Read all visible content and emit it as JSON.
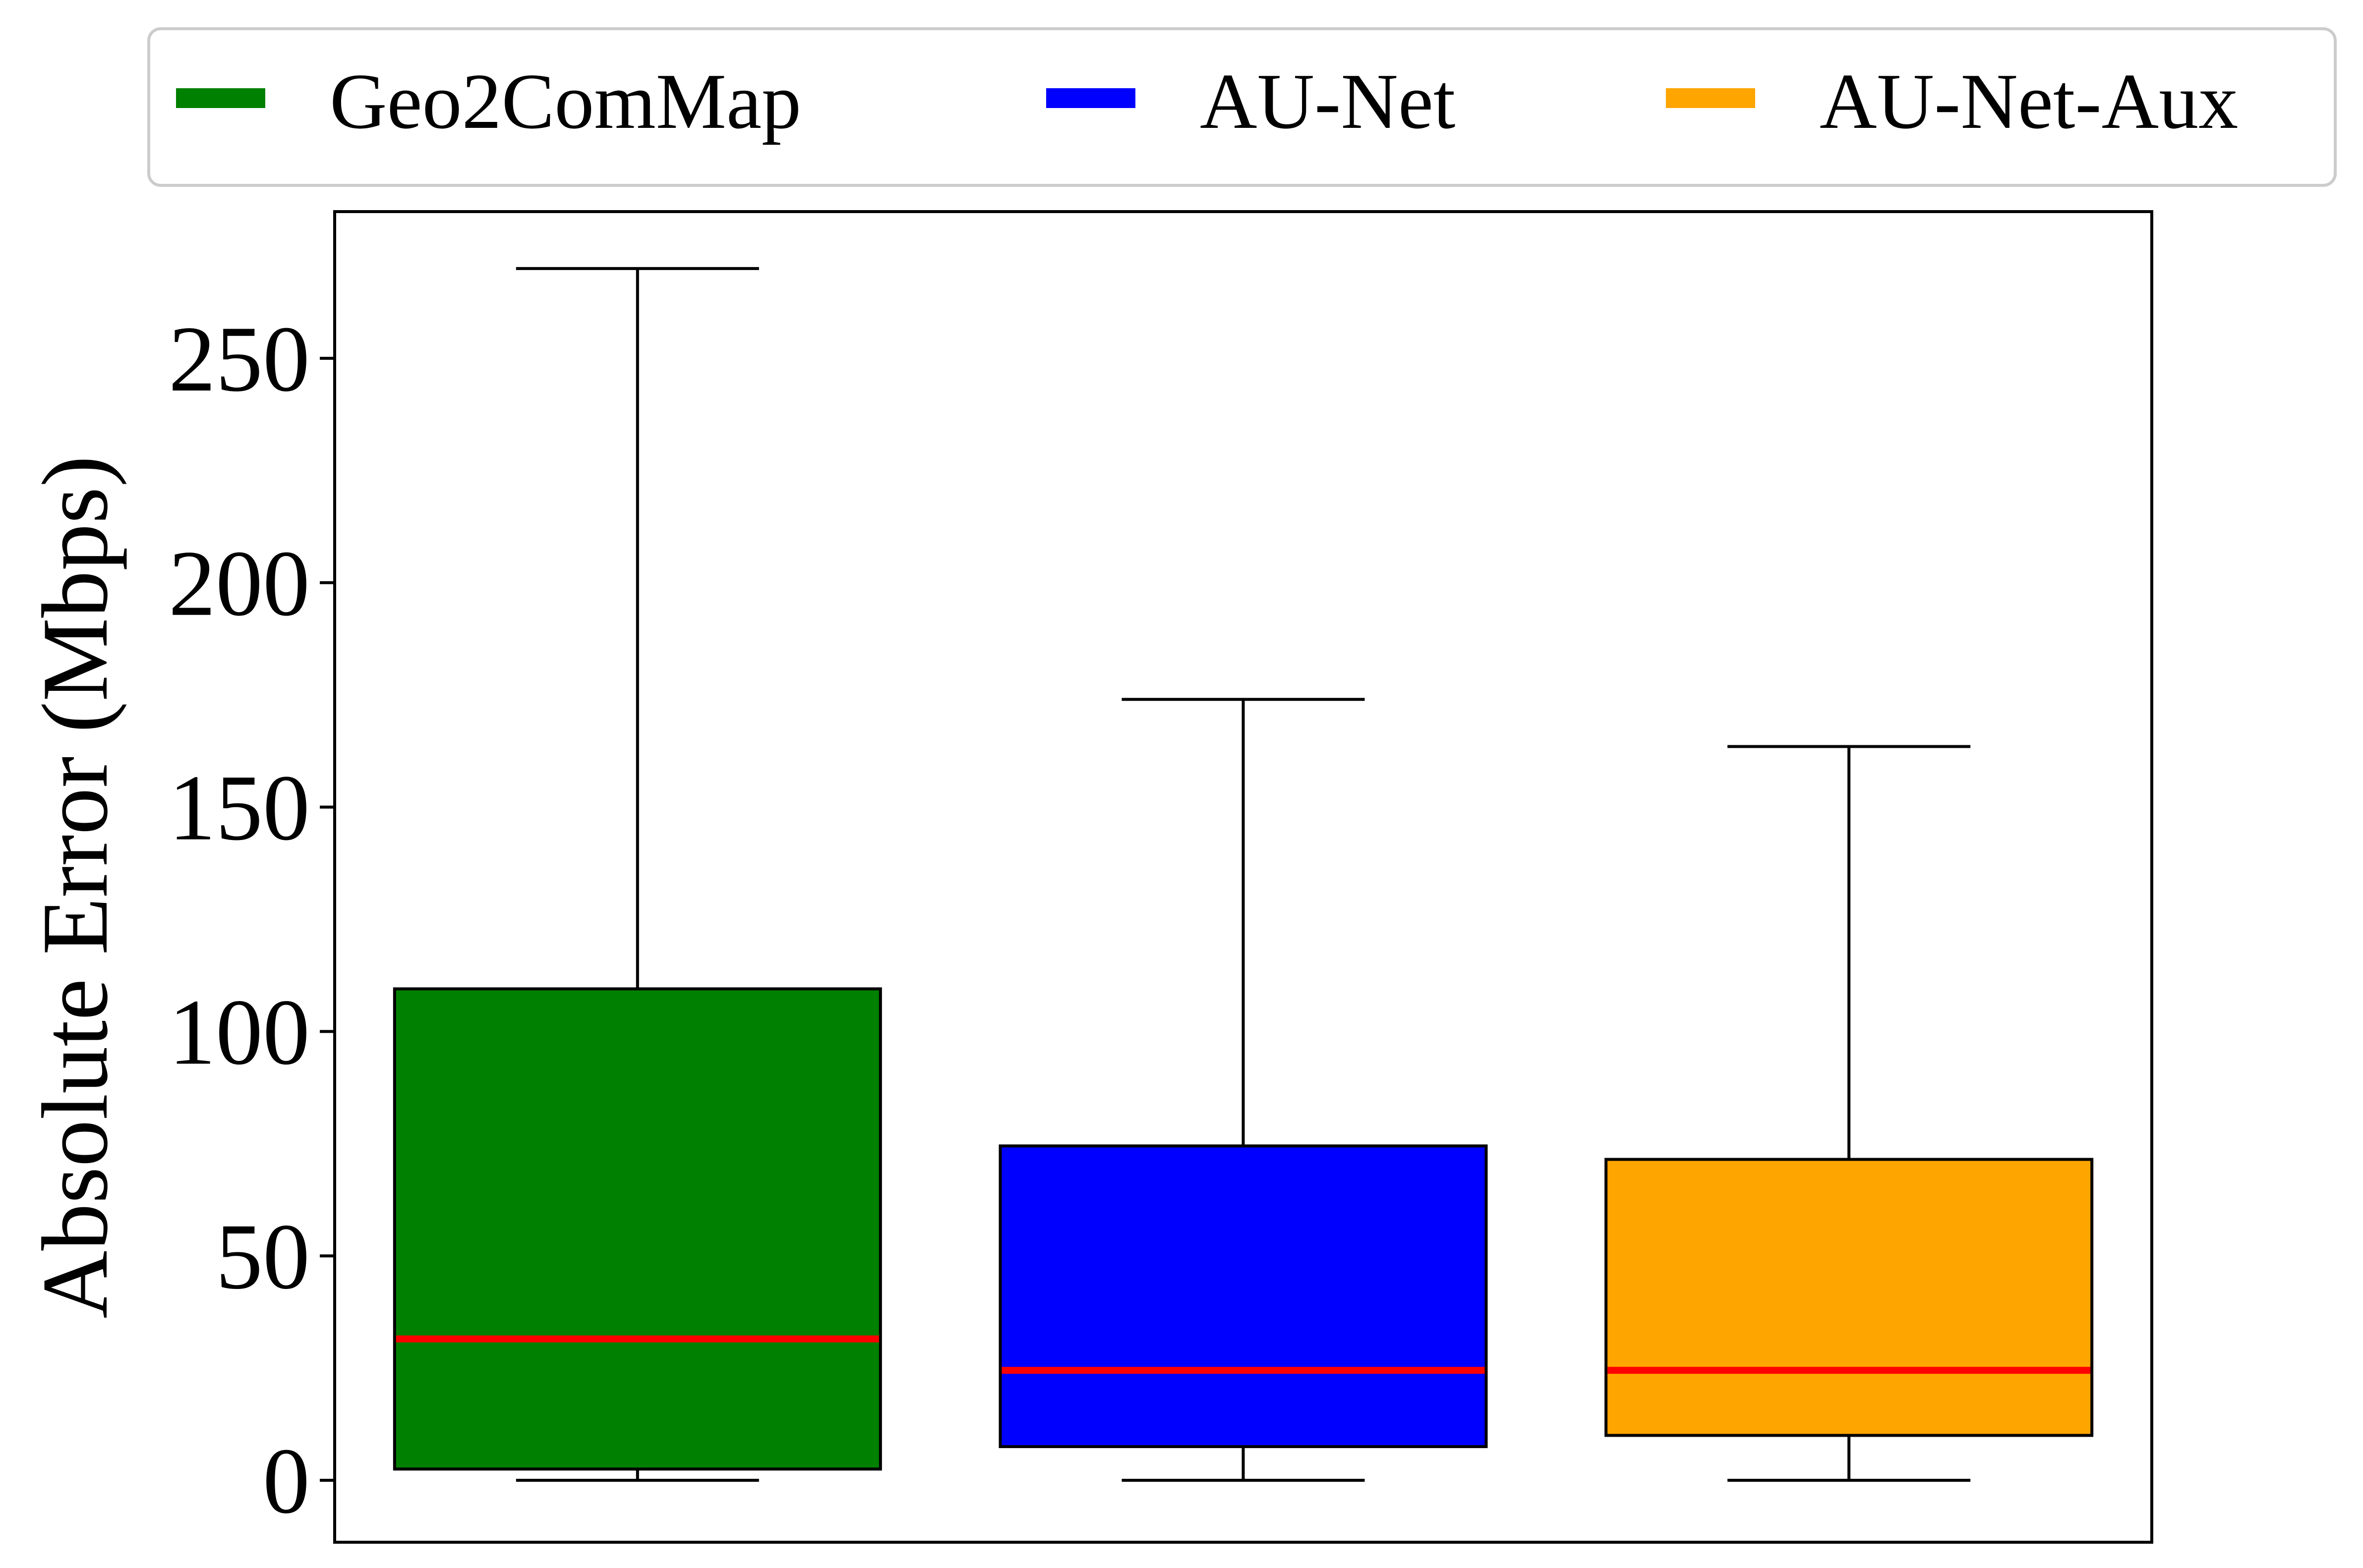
{
  "chart_data": {
    "type": "box",
    "ylabel": "Absolute Error (Mbps)",
    "xlabel": "",
    "ylim": [
      -14,
      283
    ],
    "yticks": [
      0,
      50,
      100,
      150,
      200,
      250
    ],
    "grid": false,
    "legend": {
      "position": "top-center",
      "columns": 3,
      "entries": [
        "Geo2ComMap",
        "AU-Net",
        "AU-Net-Aux"
      ]
    },
    "series": [
      {
        "name": "Geo2ComMap",
        "color": "#008000",
        "whisker_low": 0,
        "q1": 2.5,
        "median": 31.5,
        "q3": 109.5,
        "whisker_high": 270
      },
      {
        "name": "AU-Net",
        "color": "#0000ff",
        "whisker_low": 0,
        "q1": 7.5,
        "median": 24.5,
        "q3": 74.5,
        "whisker_high": 174
      },
      {
        "name": "AU-Net-Aux",
        "color": "#ffa500",
        "whisker_low": 0,
        "q1": 10,
        "median": 24.5,
        "q3": 71.5,
        "whisker_high": 163.5
      }
    ],
    "median_color": "#ff0000"
  }
}
